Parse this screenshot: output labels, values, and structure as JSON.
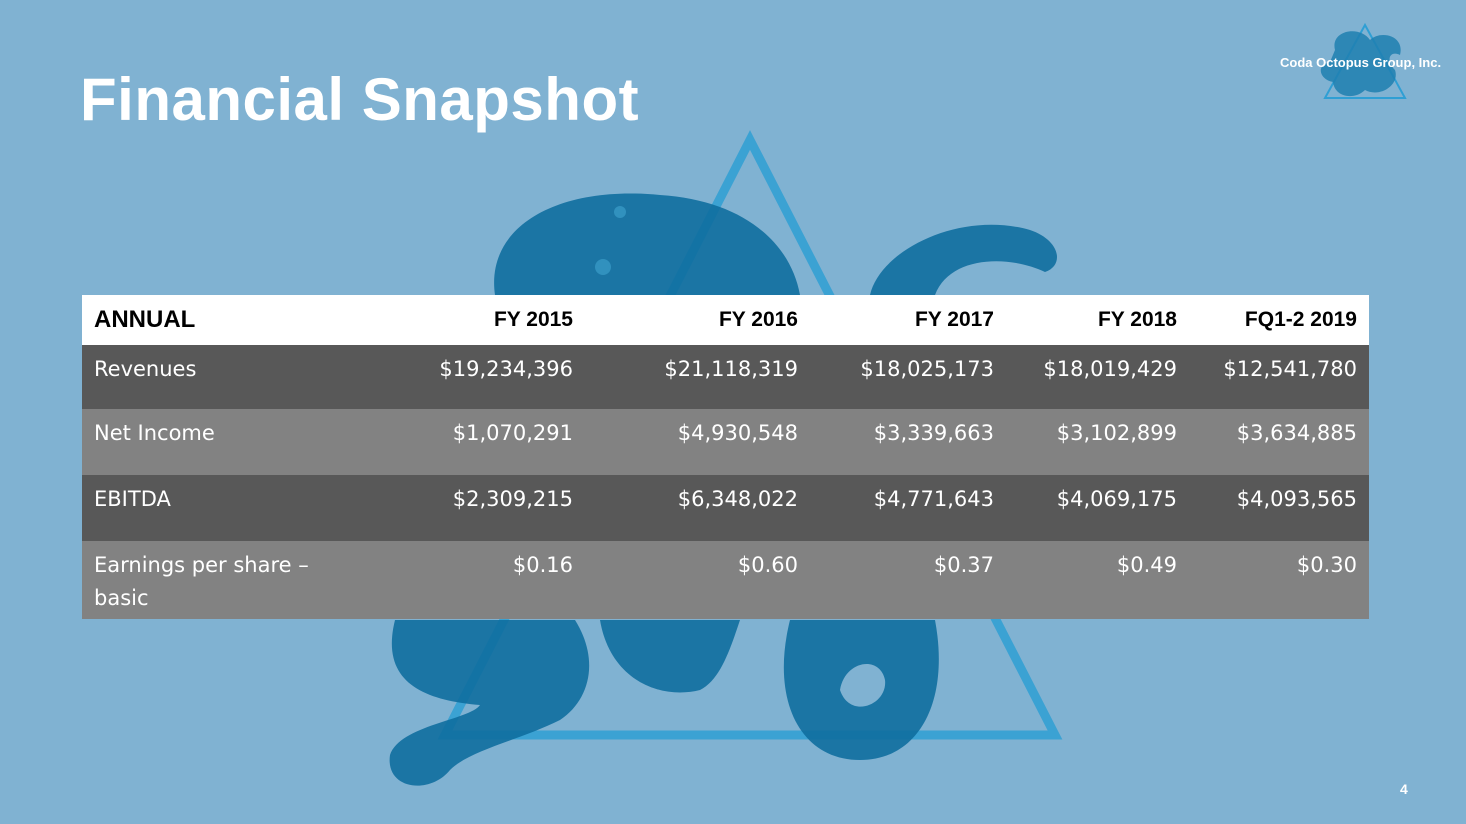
{
  "slide": {
    "title": "Financial Snapshot",
    "page_number": "4"
  },
  "logo": {
    "text": "Coda Octopus Group, Inc."
  },
  "table": {
    "headers": [
      "ANNUAL",
      "FY 2015",
      "FY 2016",
      "FY 2017",
      "FY 2018",
      "FQ1-2 2019"
    ],
    "rows": [
      [
        "Revenues",
        "$19,234,396",
        "$21,118,319",
        "$18,025,173",
        "$18,019,429",
        "$12,541,780"
      ],
      [
        "Net Income",
        "$1,070,291",
        "$4,930,548",
        "$3,339,663",
        "$3,102,899",
        "$3,634,885"
      ],
      [
        "EBITDA",
        "$2,309,215",
        "$6,348,022",
        "$4,771,643",
        "$4,069,175",
        "$4,093,565"
      ],
      [
        "Earnings per share – basic",
        "$0.16",
        "$0.60",
        "$0.37",
        "$0.49",
        "$0.30"
      ]
    ]
  },
  "colors": {
    "background": "#80b2d2",
    "header_row": "#ffffff",
    "row_dark": "#585858",
    "row_light": "#828282",
    "octopus": "#0f6e9e",
    "triangle": "#2f9fd4"
  },
  "icons": [
    "octopus-logo-icon"
  ]
}
